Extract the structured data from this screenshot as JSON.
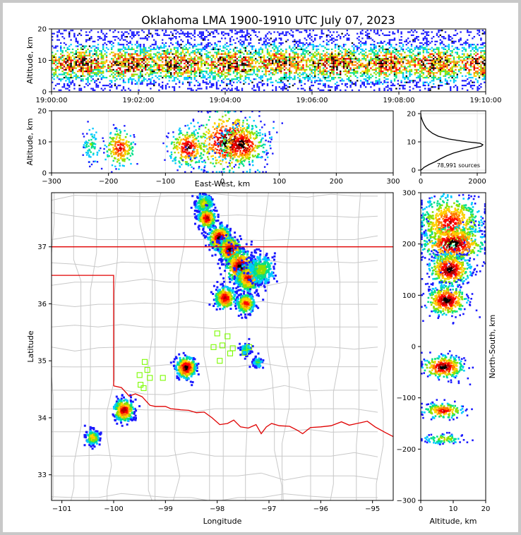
{
  "figure": {
    "title": "Oklahoma LMA 1900-1910 UTC July 07, 2023",
    "source_count_label": "78,991 sources"
  },
  "colors": {
    "state_border": "#e00000",
    "county_border": "#c8c8c8",
    "station_marker": "#7cfc00",
    "density_scale": [
      "#1a1aff",
      "#00c8ff",
      "#00e08a",
      "#8ce000",
      "#ffd000",
      "#ff7a00",
      "#ff0000",
      "#b00000",
      "#000000"
    ]
  },
  "chart_data": [
    {
      "id": "time_height",
      "type": "heatmap",
      "xlabel": "",
      "ylabel": "Altitude, km",
      "x_ticks": [
        "19:00:00",
        "19:02:00",
        "19:04:00",
        "19:06:00",
        "19:08:00",
        "19:10:00"
      ],
      "x_tick_minutes": [
        0,
        2,
        4,
        6,
        8,
        10
      ],
      "xlim_minutes": [
        0,
        10
      ],
      "y_ticks": [
        0,
        10,
        20
      ],
      "ylim": [
        0,
        20
      ],
      "grid": true,
      "core_altitude_km": 9
    },
    {
      "id": "east_west_altitude",
      "type": "heatmap",
      "xlabel": "East-West, km",
      "ylabel": "Altitude, km",
      "x_ticks": [
        -300,
        -200,
        -100,
        0,
        100,
        200,
        300
      ],
      "xlim": [
        -300,
        300
      ],
      "y_ticks": [
        0,
        10,
        20
      ],
      "ylim": [
        0,
        20
      ],
      "grid": true,
      "cells": [
        {
          "x": -230,
          "z": 9,
          "spread": 5,
          "intensity": 0.3
        },
        {
          "x": -180,
          "z": 8,
          "spread": 8,
          "intensity": 0.8
        },
        {
          "x": -60,
          "z": 8,
          "spread": 10,
          "intensity": 0.9
        },
        {
          "x": 10,
          "z": 10,
          "spread": 18,
          "intensity": 1.0
        },
        {
          "x": 35,
          "z": 9,
          "spread": 12,
          "intensity": 1.0
        }
      ]
    },
    {
      "id": "altitude_histogram",
      "type": "line",
      "xlabel": "",
      "ylabel": "",
      "x_ticks": [
        0,
        2000
      ],
      "xlim": [
        0,
        2300
      ],
      "y_ticks": [
        0,
        10,
        20
      ],
      "ylim": [
        -1,
        21
      ],
      "grid": true,
      "profile": {
        "altitude_km": [
          0,
          1,
          2,
          3,
          4,
          5,
          6,
          7,
          8,
          8.5,
          9,
          9.5,
          10,
          11,
          12,
          13,
          14,
          15,
          16,
          17,
          18,
          19,
          20
        ],
        "count": [
          10,
          120,
          300,
          520,
          700,
          900,
          1150,
          1500,
          1950,
          2150,
          2200,
          2100,
          1650,
          1000,
          620,
          420,
          290,
          190,
          130,
          80,
          40,
          10,
          0
        ]
      }
    },
    {
      "id": "plan_view",
      "type": "scatter",
      "xlabel": "Longitude",
      "ylabel": "Latitude",
      "x_ticks": [
        -101,
        -100,
        -99,
        -98,
        -97,
        -96,
        -95
      ],
      "xlim": [
        -101.2,
        -94.6
      ],
      "y_ticks": [
        33,
        34,
        35,
        36,
        37
      ],
      "ylim": [
        32.55,
        37.95
      ],
      "grid": false,
      "storm_cells": [
        {
          "lon": -98.25,
          "lat": 37.75,
          "spread": 0.08,
          "intensity": 0.5
        },
        {
          "lon": -98.2,
          "lat": 37.5,
          "spread": 0.08,
          "intensity": 0.9
        },
        {
          "lon": -97.95,
          "lat": 37.15,
          "spread": 0.1,
          "intensity": 1.0
        },
        {
          "lon": -97.75,
          "lat": 36.95,
          "spread": 0.1,
          "intensity": 1.0
        },
        {
          "lon": -97.55,
          "lat": 36.65,
          "spread": 0.13,
          "intensity": 1.0
        },
        {
          "lon": -97.4,
          "lat": 36.45,
          "spread": 0.11,
          "intensity": 0.8
        },
        {
          "lon": -97.15,
          "lat": 36.6,
          "spread": 0.12,
          "intensity": 0.45
        },
        {
          "lon": -97.85,
          "lat": 36.1,
          "spread": 0.09,
          "intensity": 0.9
        },
        {
          "lon": -97.45,
          "lat": 36.0,
          "spread": 0.08,
          "intensity": 0.8
        },
        {
          "lon": -97.45,
          "lat": 35.2,
          "spread": 0.05,
          "intensity": 0.3
        },
        {
          "lon": -97.22,
          "lat": 34.97,
          "spread": 0.04,
          "intensity": 0.4
        },
        {
          "lon": -98.6,
          "lat": 34.88,
          "spread": 0.09,
          "intensity": 1.0
        },
        {
          "lon": -99.8,
          "lat": 34.13,
          "spread": 0.09,
          "intensity": 0.9
        },
        {
          "lon": -100.4,
          "lat": 33.65,
          "spread": 0.06,
          "intensity": 0.6
        }
      ],
      "stations": [
        {
          "lon": -98.0,
          "lat": 35.48
        },
        {
          "lon": -97.8,
          "lat": 35.43
        },
        {
          "lon": -98.07,
          "lat": 35.24
        },
        {
          "lon": -97.9,
          "lat": 35.27
        },
        {
          "lon": -97.7,
          "lat": 35.22
        },
        {
          "lon": -97.38,
          "lat": 35.24
        },
        {
          "lon": -97.47,
          "lat": 35.14
        },
        {
          "lon": -97.75,
          "lat": 35.13
        },
        {
          "lon": -97.95,
          "lat": 35.0
        },
        {
          "lon": -99.4,
          "lat": 34.98
        },
        {
          "lon": -99.35,
          "lat": 34.84
        },
        {
          "lon": -99.5,
          "lat": 34.75
        },
        {
          "lon": -99.3,
          "lat": 34.7
        },
        {
          "lon": -99.05,
          "lat": 34.7
        },
        {
          "lon": -99.48,
          "lat": 34.58
        },
        {
          "lon": -99.42,
          "lat": 34.52
        }
      ],
      "oklahoma_border": [
        [
          -94.6,
          37.0
        ],
        [
          -103.0,
          37.0
        ]
      ],
      "panhandle_border": [
        [
          -101.2,
          36.5
        ],
        [
          -100.0,
          36.5
        ],
        [
          -100.0,
          34.56
        ]
      ],
      "red_river": [
        [
          -100.0,
          34.56
        ],
        [
          -99.85,
          34.53
        ],
        [
          -99.7,
          34.38
        ],
        [
          -99.58,
          34.42
        ],
        [
          -99.45,
          34.37
        ],
        [
          -99.3,
          34.22
        ],
        [
          -99.2,
          34.2
        ],
        [
          -99.0,
          34.2
        ],
        [
          -98.9,
          34.16
        ],
        [
          -98.7,
          34.14
        ],
        [
          -98.55,
          34.13
        ],
        [
          -98.4,
          34.09
        ],
        [
          -98.25,
          34.1
        ],
        [
          -98.1,
          34.0
        ],
        [
          -97.95,
          33.88
        ],
        [
          -97.8,
          33.9
        ],
        [
          -97.68,
          33.96
        ],
        [
          -97.55,
          33.84
        ],
        [
          -97.4,
          33.82
        ],
        [
          -97.25,
          33.88
        ],
        [
          -97.15,
          33.72
        ],
        [
          -97.05,
          33.84
        ],
        [
          -96.95,
          33.9
        ],
        [
          -96.8,
          33.86
        ],
        [
          -96.6,
          33.85
        ],
        [
          -96.45,
          33.78
        ],
        [
          -96.35,
          33.72
        ],
        [
          -96.2,
          33.83
        ],
        [
          -96.0,
          33.84
        ],
        [
          -95.8,
          33.86
        ],
        [
          -95.6,
          33.93
        ],
        [
          -95.45,
          33.87
        ],
        [
          -95.25,
          33.91
        ],
        [
          -95.1,
          33.94
        ],
        [
          -94.95,
          33.84
        ],
        [
          -94.75,
          33.74
        ],
        [
          -94.6,
          33.67
        ]
      ]
    },
    {
      "id": "north_south_altitude",
      "type": "heatmap",
      "xlabel": "Altitude, km",
      "ylabel": "North-South, km",
      "x_ticks": [
        0,
        10,
        20
      ],
      "xlim": [
        0,
        20
      ],
      "y_ticks": [
        -300,
        -200,
        -100,
        0,
        100,
        200,
        300
      ],
      "ylim": [
        -300,
        300
      ],
      "grid": false,
      "cells": [
        {
          "z": 9,
          "y": 240,
          "spread": 35,
          "intensity": 0.8
        },
        {
          "z": 10,
          "y": 200,
          "spread": 22,
          "intensity": 1.0
        },
        {
          "z": 9,
          "y": 150,
          "spread": 20,
          "intensity": 1.0
        },
        {
          "z": 8,
          "y": 90,
          "spread": 18,
          "intensity": 1.0
        },
        {
          "z": 7,
          "y": -40,
          "spread": 14,
          "intensity": 1.0
        },
        {
          "z": 7,
          "y": -125,
          "spread": 10,
          "intensity": 0.8
        },
        {
          "z": 7,
          "y": -180,
          "spread": 6,
          "intensity": 0.5
        }
      ]
    }
  ]
}
